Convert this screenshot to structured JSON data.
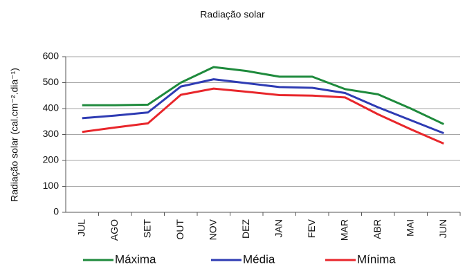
{
  "chart_data": {
    "type": "line",
    "title": "Radiação solar",
    "y_label": "Radiação solar (cal.cm⁻².dia⁻¹)",
    "categories": [
      "JUL",
      "AGO",
      "SET",
      "OUT",
      "NOV",
      "DEZ",
      "JAN",
      "FEV",
      "MAR",
      "ABR",
      "MAI",
      "JUN"
    ],
    "series": [
      {
        "name": "Máxima",
        "color": "#1e8a3c",
        "values": [
          413,
          413,
          415,
          500,
          560,
          545,
          523,
          523,
          475,
          455,
          400,
          340
        ]
      },
      {
        "name": "Média",
        "color": "#2e3bb3",
        "values": [
          363,
          373,
          385,
          485,
          513,
          498,
          483,
          480,
          460,
          405,
          355,
          305
        ]
      },
      {
        "name": "Mínima",
        "color": "#e8262b",
        "values": [
          310,
          327,
          343,
          453,
          477,
          465,
          452,
          450,
          443,
          378,
          320,
          265
        ]
      }
    ],
    "ylim": [
      0,
      600
    ],
    "yticks": [
      0,
      100,
      200,
      300,
      400,
      500,
      600
    ],
    "grid": true,
    "legend": "bottom"
  }
}
